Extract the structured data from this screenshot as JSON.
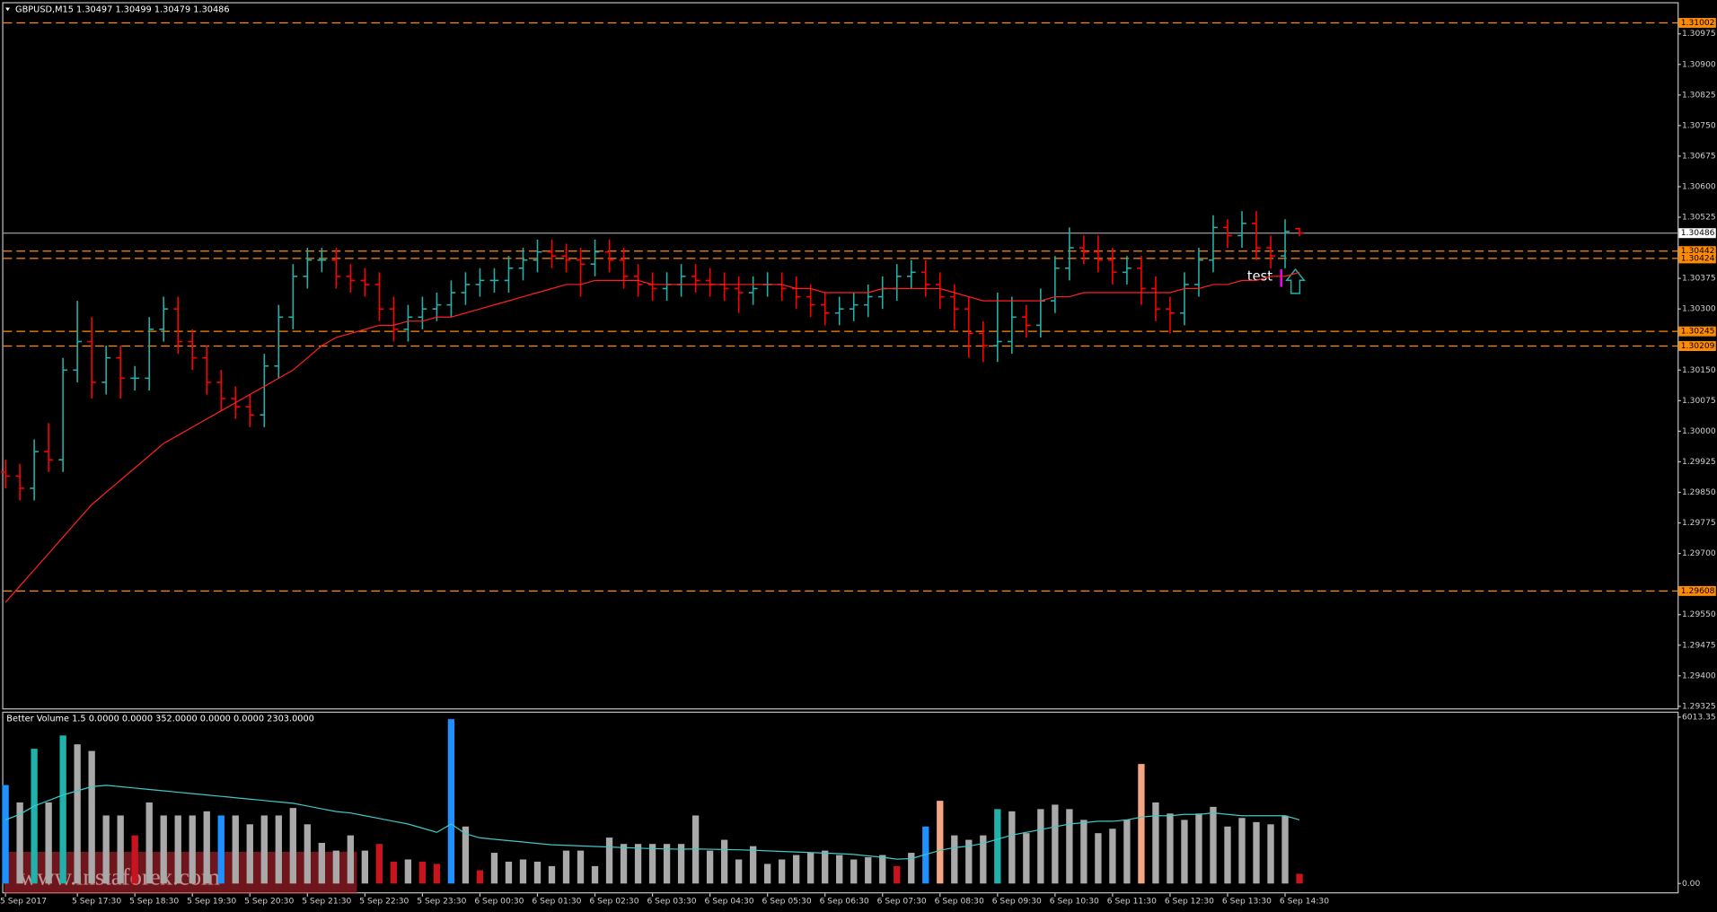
{
  "chart_data": [
    {
      "type": "ohlc",
      "title": "GBPUSD,M15  1.30497 1.30499 1.30479 1.30486",
      "categories": [
        "5 Sep 2017",
        null,
        null,
        null,
        null,
        "5 Sep 17:30",
        null,
        null,
        null,
        "5 Sep 18:30",
        null,
        null,
        null,
        "5 Sep 19:30",
        null,
        null,
        null,
        "5 Sep 20:30",
        null,
        null,
        null,
        "5 Sep 21:30",
        null,
        null,
        null,
        "5 Sep 22:30",
        null,
        null,
        null,
        "5 Sep 23:30",
        null,
        null,
        null,
        "6 Sep 00:30",
        null,
        null,
        null,
        "6 Sep 01:30",
        null,
        null,
        null,
        "6 Sep 02:30",
        null,
        null,
        null,
        "6 Sep 03:30",
        null,
        null,
        null,
        "6 Sep 04:30",
        null,
        null,
        null,
        "6 Sep 05:30",
        null,
        null,
        null,
        "6 Sep 06:30",
        null,
        null,
        null,
        "6 Sep 07:30",
        null,
        null,
        null,
        "6 Sep 08:30",
        null,
        null,
        null,
        "6 Sep 09:30",
        null,
        null,
        null,
        "6 Sep 10:30",
        null,
        null,
        null,
        "6 Sep 11:30",
        null,
        null,
        null,
        "6 Sep 12:30",
        null,
        null,
        null,
        "6 Sep 13:30",
        null,
        null,
        null,
        "6 Sep 14:30",
        null
      ],
      "open": [
        1.299,
        1.2989,
        1.2986,
        1.2995,
        1.2993,
        1.3015,
        1.3022,
        1.3012,
        1.3018,
        1.3013,
        1.3013,
        1.3025,
        1.303,
        1.3022,
        1.3018,
        1.3012,
        1.3008,
        1.3006,
        1.3004,
        1.3016,
        1.3028,
        1.3038,
        1.3042,
        1.3042,
        1.3038,
        1.3037,
        1.3036,
        1.303,
        1.3025,
        1.3028,
        1.303,
        1.3031,
        1.3034,
        1.3036,
        1.3037,
        1.3037,
        1.304,
        1.3042,
        1.3044,
        1.3043,
        1.3042,
        1.3041,
        1.3044,
        1.3042,
        1.3038,
        1.3036,
        1.3035,
        1.3036,
        1.3038,
        1.3037,
        1.3036,
        1.3035,
        1.3034,
        1.3036,
        1.3036,
        1.3035,
        1.3033,
        1.3031,
        1.3029,
        1.303,
        1.3031,
        1.3033,
        1.3035,
        1.3038,
        1.3039,
        1.3036,
        1.3033,
        1.303,
        1.3024,
        1.3021,
        1.3022,
        1.3028,
        1.3026,
        1.3032,
        1.304,
        1.3045,
        1.3044,
        1.3042,
        1.3039,
        1.304,
        1.3035,
        1.303,
        1.3029,
        1.3036,
        1.3042,
        1.305,
        1.3048,
        1.3051,
        1.3045,
        1.3043,
        1.30497
      ],
      "high": [
        1.2993,
        1.2992,
        1.2998,
        1.3002,
        1.3018,
        1.3032,
        1.3028,
        1.3021,
        1.3021,
        1.3016,
        1.3028,
        1.3033,
        1.3033,
        1.3025,
        1.3021,
        1.3015,
        1.3011,
        1.3009,
        1.3019,
        1.3031,
        1.3041,
        1.3045,
        1.3045,
        1.3045,
        1.3041,
        1.304,
        1.3039,
        1.3033,
        1.3031,
        1.3033,
        1.3034,
        1.3037,
        1.3039,
        1.304,
        1.304,
        1.3043,
        1.3045,
        1.3047,
        1.3047,
        1.3046,
        1.3045,
        1.3047,
        1.3047,
        1.3045,
        1.3041,
        1.3039,
        1.3039,
        1.3041,
        1.3041,
        1.304,
        1.3039,
        1.3038,
        1.3038,
        1.3039,
        1.3039,
        1.3038,
        1.3036,
        1.3034,
        1.3033,
        1.3034,
        1.3036,
        1.3038,
        1.3041,
        1.3042,
        1.3042,
        1.3039,
        1.3036,
        1.3033,
        1.3027,
        1.3034,
        1.3033,
        1.3031,
        1.3035,
        1.3043,
        1.305,
        1.3048,
        1.3048,
        1.3045,
        1.3043,
        1.3043,
        1.3038,
        1.3033,
        1.3039,
        1.3045,
        1.3053,
        1.3052,
        1.3054,
        1.3054,
        1.3048,
        1.3052,
        1.30499
      ],
      "low": [
        1.2986,
        1.2983,
        1.2983,
        1.299,
        1.299,
        1.3012,
        1.3008,
        1.3009,
        1.3008,
        1.301,
        1.301,
        1.3022,
        1.3019,
        1.3015,
        1.3009,
        1.3005,
        1.3003,
        1.3001,
        1.3001,
        1.3013,
        1.3025,
        1.3035,
        1.3039,
        1.3035,
        1.3034,
        1.3033,
        1.3027,
        1.3022,
        1.3022,
        1.3025,
        1.3027,
        1.3028,
        1.3031,
        1.3033,
        1.3034,
        1.3034,
        1.3037,
        1.3039,
        1.304,
        1.3039,
        1.3033,
        1.3038,
        1.3039,
        1.3035,
        1.3033,
        1.3032,
        1.3032,
        1.3033,
        1.3034,
        1.3033,
        1.3032,
        1.3029,
        1.3031,
        1.3033,
        1.3032,
        1.303,
        1.3028,
        1.3026,
        1.3026,
        1.3027,
        1.3028,
        1.303,
        1.3032,
        1.3035,
        1.3033,
        1.303,
        1.3025,
        1.3018,
        1.3017,
        1.3017,
        1.3019,
        1.3023,
        1.3023,
        1.3029,
        1.3037,
        1.3041,
        1.3039,
        1.3036,
        1.3036,
        1.3031,
        1.3027,
        1.3024,
        1.3026,
        1.3033,
        1.3039,
        1.3045,
        1.3045,
        1.3042,
        1.304,
        1.304,
        1.30479
      ],
      "close": [
        1.2989,
        1.2986,
        1.2995,
        1.2993,
        1.3015,
        1.3022,
        1.3012,
        1.3018,
        1.3013,
        1.3013,
        1.3025,
        1.303,
        1.3022,
        1.3018,
        1.3012,
        1.3008,
        1.3006,
        1.3004,
        1.3016,
        1.3028,
        1.3038,
        1.3042,
        1.3042,
        1.3038,
        1.3037,
        1.3036,
        1.303,
        1.3025,
        1.3028,
        1.303,
        1.3031,
        1.3034,
        1.3036,
        1.3037,
        1.3037,
        1.304,
        1.3042,
        1.3044,
        1.3043,
        1.3042,
        1.3041,
        1.3044,
        1.3042,
        1.3038,
        1.3036,
        1.3035,
        1.3036,
        1.3038,
        1.3037,
        1.3036,
        1.3035,
        1.3034,
        1.3035,
        1.3036,
        1.3035,
        1.3033,
        1.3031,
        1.3029,
        1.303,
        1.3031,
        1.3033,
        1.3035,
        1.3038,
        1.3039,
        1.3036,
        1.3033,
        1.303,
        1.3024,
        1.3021,
        1.3022,
        1.3028,
        1.3026,
        1.3032,
        1.304,
        1.3045,
        1.3044,
        1.3042,
        1.3039,
        1.304,
        1.3035,
        1.303,
        1.3029,
        1.3036,
        1.3042,
        1.305,
        1.3048,
        1.3051,
        1.3045,
        1.3043,
        1.3049,
        1.30486
      ],
      "up_color": "#20b2aa",
      "down_color": "#ff0000",
      "ma": {
        "color": "#ff2020",
        "values": [
          1.2958,
          1.2962,
          1.2966,
          1.297,
          1.2974,
          1.2978,
          1.2982,
          1.2985,
          1.2988,
          1.2991,
          1.2994,
          1.2997,
          1.2999,
          1.3001,
          1.3003,
          1.3005,
          1.3007,
          1.3009,
          1.3011,
          1.3013,
          1.3015,
          1.3018,
          1.3021,
          1.3023,
          1.3024,
          1.3025,
          1.3026,
          1.3026,
          1.3027,
          1.3027,
          1.3028,
          1.3028,
          1.3029,
          1.303,
          1.3031,
          1.3032,
          1.3033,
          1.3034,
          1.3035,
          1.3036,
          1.3036,
          1.3037,
          1.3037,
          1.3037,
          1.3037,
          1.3036,
          1.3036,
          1.3036,
          1.3036,
          1.3036,
          1.3036,
          1.3036,
          1.3036,
          1.3036,
          1.3036,
          1.3035,
          1.3035,
          1.3034,
          1.3034,
          1.3034,
          1.3034,
          1.3035,
          1.3035,
          1.3035,
          1.3035,
          1.3035,
          1.3034,
          1.3033,
          1.3032,
          1.3032,
          1.3032,
          1.3032,
          1.3032,
          1.3033,
          1.3033,
          1.3034,
          1.3034,
          1.3034,
          1.3034,
          1.3034,
          1.3034,
          1.3034,
          1.3035,
          1.3035,
          1.3036,
          1.3036,
          1.3037,
          1.3037,
          1.3038,
          1.3038,
          1.3039
        ]
      },
      "levels": {
        "color": "#ff8c00",
        "lines": [
          {
            "value": 1.31002,
            "label": "1.31002"
          },
          {
            "value": 1.30442,
            "label": "1.30442"
          },
          {
            "value": 1.30424,
            "label": "1.30424"
          },
          {
            "value": 1.30245,
            "label": "1.30245"
          },
          {
            "value": 1.30209,
            "label": "1.30209"
          },
          {
            "value": 1.29608,
            "label": "1.29608"
          }
        ]
      },
      "price_line": {
        "value": 1.30486,
        "label": "1.30486",
        "color": "#c0c0c0"
      },
      "ylim": [
        1.2932,
        1.3105
      ],
      "yticks": [
        {
          "value": 1.30975,
          "label": "1.30975"
        },
        {
          "value": 1.309,
          "label": "1.30900"
        },
        {
          "value": 1.30825,
          "label": "1.30825"
        },
        {
          "value": 1.3075,
          "label": "1.30750"
        },
        {
          "value": 1.30675,
          "label": "1.30675"
        },
        {
          "value": 1.306,
          "label": "1.30600"
        },
        {
          "value": 1.30525,
          "label": "1.30525"
        },
        {
          "value": 1.30375,
          "label": "1.30375"
        },
        {
          "value": 1.303,
          "label": "1.30300"
        },
        {
          "value": 1.3015,
          "label": "1.30150"
        },
        {
          "value": 1.30075,
          "label": "1.30075"
        },
        {
          "value": 1.3,
          "label": "1.30000"
        },
        {
          "value": 1.29925,
          "label": "1.29925"
        },
        {
          "value": 1.2985,
          "label": "1.29850"
        },
        {
          "value": 1.29775,
          "label": "1.29775"
        },
        {
          "value": 1.297,
          "label": "1.29700"
        },
        {
          "value": 1.2955,
          "label": "1.29550"
        },
        {
          "value": 1.29475,
          "label": "1.29475"
        },
        {
          "value": 1.294,
          "label": "1.29400"
        },
        {
          "value": 1.29325,
          "label": "1.29325"
        }
      ],
      "annotation": "test"
    },
    {
      "type": "bar",
      "title": "Better Volume 1.5 0.0000 0.0000 352.0000 0.0000 0.0000 2303.0000",
      "values": [
        3560,
        2930,
        4870,
        2930,
        5350,
        5030,
        4790,
        2460,
        2460,
        1740,
        2930,
        2460,
        2460,
        2460,
        2610,
        2460,
        2460,
        2140,
        2460,
        2460,
        2730,
        2140,
        1470,
        1190,
        1740,
        1190,
        1430,
        790,
        870,
        790,
        710,
        5940,
        2060,
        480,
        1110,
        790,
        870,
        790,
        630,
        1190,
        1190,
        630,
        1660,
        1430,
        1430,
        1430,
        1430,
        1430,
        2460,
        1190,
        1580,
        870,
        1350,
        710,
        870,
        1030,
        1110,
        1190,
        1030,
        870,
        950,
        1030,
        630,
        1110,
        2060,
        2990,
        1740,
        1580,
        1740,
        2690,
        2610,
        1820,
        2690,
        2850,
        2690,
        2300,
        1820,
        1980,
        2300,
        4320,
        2930,
        2530,
        2300,
        2530,
        2770,
        2060,
        2370,
        2220,
        2140,
        2450,
        352
      ],
      "colors": [
        "#1e90ff",
        "#a9a9a9",
        "#20b2aa",
        "#a9a9a9",
        "#20b2aa",
        "#a9a9a9",
        "#a9a9a9",
        "#a9a9a9",
        "#a9a9a9",
        "#c8141e",
        "#a9a9a9",
        "#a9a9a9",
        "#a9a9a9",
        "#a9a9a9",
        "#a9a9a9",
        "#1e90ff",
        "#a9a9a9",
        "#a9a9a9",
        "#a9a9a9",
        "#a9a9a9",
        "#a9a9a9",
        "#a9a9a9",
        "#a9a9a9",
        "#a9a9a9",
        "#a9a9a9",
        "#a9a9a9",
        "#c8141e",
        "#c8141e",
        "#a9a9a9",
        "#c8141e",
        "#c8141e",
        "#1e90ff",
        "#a9a9a9",
        "#c8141e",
        "#a9a9a9",
        "#a9a9a9",
        "#a9a9a9",
        "#a9a9a9",
        "#a9a9a9",
        "#a9a9a9",
        "#a9a9a9",
        "#a9a9a9",
        "#a9a9a9",
        "#a9a9a9",
        "#a9a9a9",
        "#a9a9a9",
        "#a9a9a9",
        "#a9a9a9",
        "#a9a9a9",
        "#a9a9a9",
        "#a9a9a9",
        "#a9a9a9",
        "#a9a9a9",
        "#a9a9a9",
        "#a9a9a9",
        "#a9a9a9",
        "#a9a9a9",
        "#a9a9a9",
        "#a9a9a9",
        "#a9a9a9",
        "#a9a9a9",
        "#a9a9a9",
        "#c8141e",
        "#a9a9a9",
        "#1e90ff",
        "#f4a582",
        "#a9a9a9",
        "#a9a9a9",
        "#a9a9a9",
        "#20b2aa",
        "#a9a9a9",
        "#a9a9a9",
        "#a9a9a9",
        "#a9a9a9",
        "#a9a9a9",
        "#a9a9a9",
        "#a9a9a9",
        "#a9a9a9",
        "#a9a9a9",
        "#f4a582",
        "#a9a9a9",
        "#a9a9a9",
        "#a9a9a9",
        "#a9a9a9",
        "#a9a9a9",
        "#a9a9a9",
        "#a9a9a9",
        "#a9a9a9",
        "#a9a9a9",
        "#a9a9a9",
        "#c8141e"
      ],
      "ma": {
        "color": "#40c8c8",
        "values": [
          2300,
          2500,
          2800,
          3000,
          3200,
          3350,
          3500,
          3550,
          3500,
          3450,
          3400,
          3350,
          3300,
          3250,
          3200,
          3150,
          3100,
          3050,
          3000,
          2950,
          2900,
          2800,
          2700,
          2600,
          2550,
          2450,
          2350,
          2250,
          2150,
          2000,
          1850,
          2150,
          1800,
          1650,
          1600,
          1550,
          1500,
          1450,
          1400,
          1380,
          1360,
          1340,
          1320,
          1300,
          1280,
          1260,
          1250,
          1240,
          1250,
          1240,
          1230,
          1220,
          1200,
          1180,
          1160,
          1140,
          1120,
          1100,
          1080,
          1050,
          1000,
          950,
          880,
          900,
          1050,
          1200,
          1300,
          1350,
          1450,
          1600,
          1750,
          1850,
          1950,
          2050,
          2150,
          2200,
          2250,
          2250,
          2300,
          2400,
          2450,
          2450,
          2500,
          2500,
          2550,
          2500,
          2450,
          2450,
          2450,
          2450,
          2303
        ]
      },
      "ylim": [
        0,
        6013.35
      ],
      "yticks": [
        {
          "value": 6013.35,
          "label": "6013.35"
        },
        {
          "value": 0,
          "label": "0.00"
        }
      ]
    }
  ],
  "watermark": "www.instaforex.com"
}
